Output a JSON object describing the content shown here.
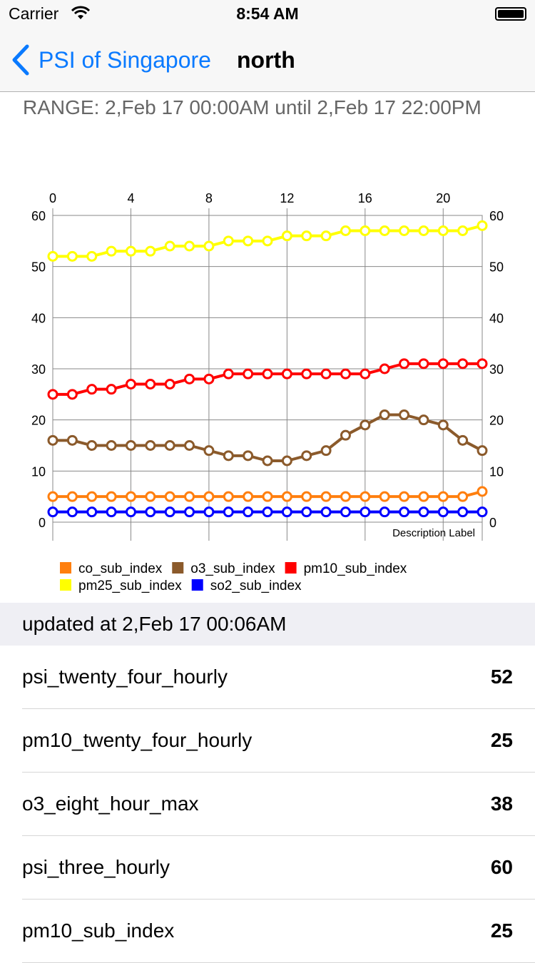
{
  "status_bar": {
    "carrier": "Carrier",
    "time": "8:54 AM"
  },
  "nav": {
    "back_label": "PSI of Singapore",
    "title": "north",
    "back_icon": "chevron-left-icon"
  },
  "range_text": "RANGE: 2,Feb 17 00:00AM until 2,Feb 17 22:00PM",
  "chart_data": {
    "type": "line",
    "x": [
      0,
      1,
      2,
      3,
      4,
      5,
      6,
      7,
      8,
      9,
      10,
      11,
      12,
      13,
      14,
      15,
      16,
      17,
      18,
      19,
      20,
      21,
      22
    ],
    "xlim": [
      0,
      22
    ],
    "ylim": [
      0,
      60
    ],
    "x_ticks": [
      0,
      4,
      8,
      12,
      16,
      20
    ],
    "y_ticks": [
      0,
      10,
      20,
      30,
      40,
      50,
      60
    ],
    "description": "Description Label",
    "grid": true,
    "legend_position": "bottom",
    "series": [
      {
        "name": "co_sub_index",
        "color": "#ff7f0e",
        "values": [
          5,
          5,
          5,
          5,
          5,
          5,
          5,
          5,
          5,
          5,
          5,
          5,
          5,
          5,
          5,
          5,
          5,
          5,
          5,
          5,
          5,
          5,
          6
        ]
      },
      {
        "name": "o3_sub_index",
        "color": "#8b5a2b",
        "values": [
          16,
          16,
          15,
          15,
          15,
          15,
          15,
          15,
          14,
          13,
          13,
          12,
          12,
          13,
          14,
          17,
          19,
          21,
          21,
          20,
          19,
          16,
          14
        ]
      },
      {
        "name": "pm10_sub_index",
        "color": "#ff0000",
        "values": [
          25,
          25,
          26,
          26,
          27,
          27,
          27,
          28,
          28,
          29,
          29,
          29,
          29,
          29,
          29,
          29,
          29,
          30,
          31,
          31,
          31,
          31,
          31
        ]
      },
      {
        "name": "pm25_sub_index",
        "color": "#ffff00",
        "values": [
          52,
          52,
          52,
          53,
          53,
          53,
          54,
          54,
          54,
          55,
          55,
          55,
          56,
          56,
          56,
          57,
          57,
          57,
          57,
          57,
          57,
          57,
          58
        ]
      },
      {
        "name": "so2_sub_index",
        "color": "#0000ff",
        "values": [
          2,
          2,
          2,
          2,
          2,
          2,
          2,
          2,
          2,
          2,
          2,
          2,
          2,
          2,
          2,
          2,
          2,
          2,
          2,
          2,
          2,
          2,
          2
        ]
      }
    ]
  },
  "section_header": "updated at 2,Feb 17 00:06AM",
  "rows": [
    {
      "key": "psi_twenty_four_hourly",
      "value": "52"
    },
    {
      "key": "pm10_twenty_four_hourly",
      "value": "25"
    },
    {
      "key": "o3_eight_hour_max",
      "value": "38"
    },
    {
      "key": "psi_three_hourly",
      "value": "60"
    },
    {
      "key": "pm10_sub_index",
      "value": "25"
    }
  ]
}
